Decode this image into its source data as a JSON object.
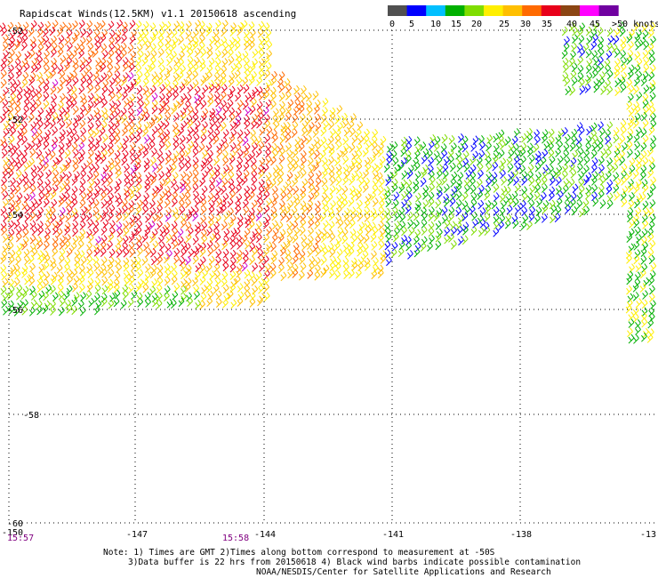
{
  "title": "Rapidscat Winds(12.5KM) v1.1 20150618 ascending",
  "legend": {
    "labels": [
      "0",
      "5",
      "10",
      "15",
      "20",
      "25",
      "30",
      "35",
      "40",
      "45",
      ">50 knots"
    ],
    "colors": [
      "#505050",
      "#0000ff",
      "#00bfff",
      "#00b000",
      "#7fdd00",
      "#ffef00",
      "#ffbf00",
      "#ff6a00",
      "#e8001a",
      "#8b4513",
      "#ff00ff",
      "#7000a0"
    ]
  },
  "axes": {
    "lat_labels": [
      "-52",
      "-52",
      "-54",
      "-56",
      "-58",
      "-60"
    ],
    "lon_labels": [
      "-150",
      "-147",
      "-144",
      "-141",
      "-138",
      "-13"
    ]
  },
  "times": [
    "15:57",
    "15:58"
  ],
  "note": {
    "line1": "Note: 1) Times are GMT 2)Times along bottom correspond to measurement at -50S",
    "line2": "3)Data buffer is 22 hrs from 20150618 4) Black wind barbs indicate possible contamination",
    "line3": "NOAA/NESDIS/Center for Satellite Applications and Research"
  }
}
